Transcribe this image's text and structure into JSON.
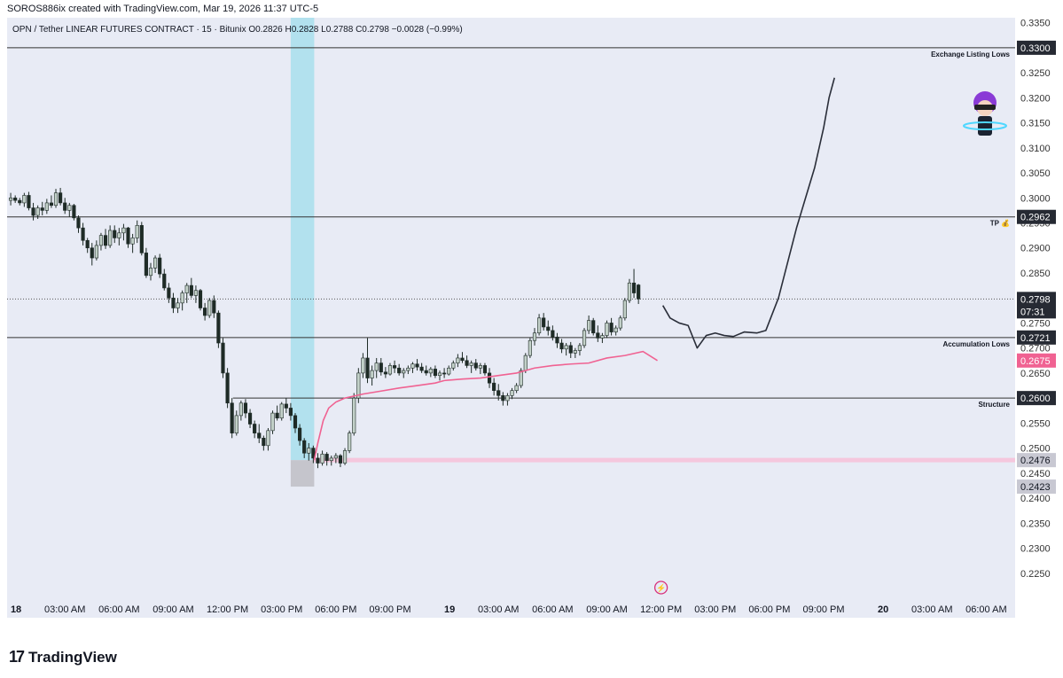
{
  "header": {
    "attribution": "SOROS886ix created with TradingView.com, Mar 19, 2026 11:37 UTC-5",
    "symbol_line": "OPN / Tether LINEAR FUTURES CONTRACT · 15 · Bitunix",
    "ohlc": {
      "o_label": "O",
      "o": "0.2826",
      "h_label": "H",
      "h": "0.2828",
      "l_label": "L",
      "l": "0.2788",
      "c_label": "C",
      "c": "0.2798",
      "change": "−0.0028 (−0.99%)"
    }
  },
  "footer": {
    "brand": "TradingView",
    "logo_mark": "17"
  },
  "colors": {
    "background": "#e8ebf5",
    "candle_up": "#c3d1c9",
    "candle_down": "#1e2b26",
    "ema": "#f06292",
    "zone": "#b2e1ee",
    "zone_low": "#c5c5cc",
    "level_line": "#333333",
    "projection": "#2a2e39",
    "support_band": "#f5c7dd",
    "dotted_price_line": "#555555"
  },
  "chart_data": {
    "type": "candlestick",
    "symbol": "OPN / Tether LINEAR FUTURES CONTRACT",
    "timeframe": "15",
    "exchange": "Bitunix",
    "ylim": [
      0.22,
      0.336
    ],
    "y_ticks": [
      "0.3350",
      "0.3300",
      "0.3250",
      "0.3200",
      "0.3150",
      "0.3100",
      "0.3050",
      "0.3000",
      "0.2950",
      "0.2900",
      "0.2850",
      "0.2800",
      "0.2750",
      "0.2700",
      "0.2650",
      "0.2600",
      "0.2550",
      "0.2500",
      "0.2450",
      "0.2400",
      "0.2350",
      "0.2300",
      "0.2250"
    ],
    "x_ticks": [
      {
        "label": "18",
        "hour": 0,
        "bold": true
      },
      {
        "label": "03:00 AM",
        "hour": 3
      },
      {
        "label": "06:00 AM",
        "hour": 6
      },
      {
        "label": "09:00 AM",
        "hour": 9
      },
      {
        "label": "12:00 PM",
        "hour": 12
      },
      {
        "label": "03:00 PM",
        "hour": 15
      },
      {
        "label": "06:00 PM",
        "hour": 18
      },
      {
        "label": "09:00 PM",
        "hour": 21
      },
      {
        "label": "19",
        "hour": 24,
        "bold": true
      },
      {
        "label": "03:00 AM",
        "hour": 27
      },
      {
        "label": "06:00 AM",
        "hour": 30
      },
      {
        "label": "09:00 AM",
        "hour": 33
      },
      {
        "label": "12:00 PM",
        "hour": 36
      },
      {
        "label": "03:00 PM",
        "hour": 39
      },
      {
        "label": "06:00 PM",
        "hour": 42
      },
      {
        "label": "09:00 PM",
        "hour": 45
      },
      {
        "label": "20",
        "hour": 48,
        "bold": true
      },
      {
        "label": "03:00 AM",
        "hour": 51
      },
      {
        "label": "06:00 AM",
        "hour": 54
      }
    ],
    "x_range_hours": [
      -0.2,
      55.6
    ],
    "horizontal_levels": [
      {
        "price": 0.33,
        "label": "Exchange Listing Lows",
        "price_label": "0.3300"
      },
      {
        "price": 0.2962,
        "label": "TP 💰",
        "price_label": "0.2962"
      },
      {
        "price": 0.2721,
        "label": "Accumulation Lows",
        "price_label": "0.2721"
      },
      {
        "price": 0.26,
        "label": "Structure",
        "price_label": "0.2600",
        "from_hour": 12.3
      }
    ],
    "current_price": {
      "price": 0.2798,
      "price_label": "0.2798",
      "countdown": "07:31"
    },
    "ema_value": {
      "price": 0.2675,
      "price_label": "0.2675"
    },
    "support_band": {
      "price": 0.2476,
      "price_label": "0.2476",
      "from_hour": 16.8
    },
    "low_marker": {
      "price": 0.2423,
      "price_label": "0.2423"
    },
    "highlight_zone": {
      "from_hour": 15.5,
      "to_hour": 16.8,
      "zone_low": 0.2423,
      "zone_mid": 0.2476,
      "zone_high": 0.336
    },
    "ohlc": [
      [
        0.2995,
        0.301,
        0.2985,
        0.3
      ],
      [
        0.3,
        0.3005,
        0.299,
        0.2995
      ],
      [
        0.2995,
        0.3,
        0.2985,
        0.299
      ],
      [
        0.299,
        0.301,
        0.2982,
        0.3005
      ],
      [
        0.3005,
        0.3012,
        0.2975,
        0.298
      ],
      [
        0.298,
        0.299,
        0.2955,
        0.2965
      ],
      [
        0.2965,
        0.2985,
        0.2958,
        0.298
      ],
      [
        0.298,
        0.2992,
        0.2965,
        0.2975
      ],
      [
        0.2975,
        0.2998,
        0.2968,
        0.299
      ],
      [
        0.299,
        0.3005,
        0.298,
        0.2985
      ],
      [
        0.2985,
        0.3018,
        0.298,
        0.301
      ],
      [
        0.301,
        0.302,
        0.2985,
        0.299
      ],
      [
        0.299,
        0.3,
        0.2968,
        0.2975
      ],
      [
        0.2975,
        0.299,
        0.2962,
        0.2985
      ],
      [
        0.2985,
        0.2988,
        0.2955,
        0.296
      ],
      [
        0.296,
        0.2965,
        0.293,
        0.294
      ],
      [
        0.294,
        0.295,
        0.2905,
        0.2915
      ],
      [
        0.2915,
        0.292,
        0.289,
        0.29
      ],
      [
        0.29,
        0.291,
        0.2865,
        0.288
      ],
      [
        0.288,
        0.2915,
        0.2875,
        0.2905
      ],
      [
        0.2905,
        0.293,
        0.2895,
        0.2925
      ],
      [
        0.2925,
        0.2938,
        0.2898,
        0.2905
      ],
      [
        0.2905,
        0.2945,
        0.29,
        0.2935
      ],
      [
        0.2935,
        0.2945,
        0.291,
        0.292
      ],
      [
        0.292,
        0.294,
        0.2905,
        0.293
      ],
      [
        0.293,
        0.2948,
        0.2915,
        0.294
      ],
      [
        0.294,
        0.2942,
        0.29,
        0.2908
      ],
      [
        0.2908,
        0.2928,
        0.289,
        0.292
      ],
      [
        0.292,
        0.2955,
        0.291,
        0.2945
      ],
      [
        0.2945,
        0.2952,
        0.2885,
        0.289
      ],
      [
        0.289,
        0.29,
        0.284,
        0.2845
      ],
      [
        0.2845,
        0.287,
        0.2835,
        0.286
      ],
      [
        0.286,
        0.2885,
        0.285,
        0.288
      ],
      [
        0.288,
        0.2888,
        0.284,
        0.2848
      ],
      [
        0.2848,
        0.2858,
        0.2815,
        0.282
      ],
      [
        0.282,
        0.283,
        0.279,
        0.28
      ],
      [
        0.28,
        0.281,
        0.277,
        0.278
      ],
      [
        0.278,
        0.28,
        0.277,
        0.279
      ],
      [
        0.279,
        0.2815,
        0.2775,
        0.281
      ],
      [
        0.281,
        0.283,
        0.279,
        0.2825
      ],
      [
        0.2825,
        0.284,
        0.28,
        0.2805
      ],
      [
        0.2805,
        0.2825,
        0.279,
        0.2815
      ],
      [
        0.2815,
        0.2818,
        0.2775,
        0.278
      ],
      [
        0.278,
        0.279,
        0.2755,
        0.2765
      ],
      [
        0.2765,
        0.28,
        0.276,
        0.2795
      ],
      [
        0.2795,
        0.2805,
        0.276,
        0.277
      ],
      [
        0.277,
        0.2775,
        0.27,
        0.271
      ],
      [
        0.271,
        0.272,
        0.264,
        0.265
      ],
      [
        0.265,
        0.266,
        0.258,
        0.259
      ],
      [
        0.259,
        0.26,
        0.252,
        0.253
      ],
      [
        0.253,
        0.2575,
        0.2525,
        0.2565
      ],
      [
        0.2565,
        0.2595,
        0.2555,
        0.259
      ],
      [
        0.259,
        0.2598,
        0.256,
        0.257
      ],
      [
        0.257,
        0.2578,
        0.254,
        0.2548
      ],
      [
        0.2548,
        0.2555,
        0.252,
        0.253
      ],
      [
        0.253,
        0.2548,
        0.251,
        0.252
      ],
      [
        0.252,
        0.2525,
        0.2495,
        0.2505
      ],
      [
        0.2505,
        0.254,
        0.2495,
        0.2535
      ],
      [
        0.2535,
        0.2575,
        0.2528,
        0.257
      ],
      [
        0.257,
        0.2585,
        0.2555,
        0.256
      ],
      [
        0.256,
        0.2592,
        0.2555,
        0.2588
      ],
      [
        0.2588,
        0.26,
        0.257,
        0.258
      ],
      [
        0.258,
        0.259,
        0.2555,
        0.2565
      ],
      [
        0.2565,
        0.257,
        0.253,
        0.254
      ],
      [
        0.254,
        0.2548,
        0.2505,
        0.2515
      ],
      [
        0.2515,
        0.252,
        0.248,
        0.249
      ],
      [
        0.249,
        0.251,
        0.2475,
        0.25
      ],
      [
        0.25,
        0.2505,
        0.247,
        0.248
      ],
      [
        0.248,
        0.249,
        0.246,
        0.247
      ],
      [
        0.247,
        0.2495,
        0.2465,
        0.2488
      ],
      [
        0.2488,
        0.2492,
        0.2465,
        0.2475
      ],
      [
        0.2475,
        0.2485,
        0.2465,
        0.248
      ],
      [
        0.248,
        0.249,
        0.247,
        0.2485
      ],
      [
        0.2485,
        0.2488,
        0.2462,
        0.247
      ],
      [
        0.247,
        0.25,
        0.2466,
        0.2495
      ],
      [
        0.2495,
        0.2535,
        0.249,
        0.253
      ],
      [
        0.253,
        0.261,
        0.2525,
        0.26
      ],
      [
        0.26,
        0.266,
        0.259,
        0.265
      ],
      [
        0.265,
        0.269,
        0.264,
        0.268
      ],
      [
        0.268,
        0.272,
        0.263,
        0.264
      ],
      [
        0.264,
        0.2665,
        0.2625,
        0.2655
      ],
      [
        0.2655,
        0.268,
        0.264,
        0.267
      ],
      [
        0.267,
        0.268,
        0.2645,
        0.2652
      ],
      [
        0.2652,
        0.2662,
        0.264,
        0.2648
      ],
      [
        0.2648,
        0.267,
        0.2645,
        0.2665
      ],
      [
        0.2665,
        0.2675,
        0.265,
        0.266
      ],
      [
        0.266,
        0.2668,
        0.2645,
        0.265
      ],
      [
        0.265,
        0.266,
        0.264,
        0.2655
      ],
      [
        0.2655,
        0.2665,
        0.2648,
        0.266
      ],
      [
        0.266,
        0.2672,
        0.265,
        0.2668
      ],
      [
        0.2668,
        0.2678,
        0.2655,
        0.2662
      ],
      [
        0.2662,
        0.267,
        0.265,
        0.2655
      ],
      [
        0.2655,
        0.2665,
        0.2645,
        0.265
      ],
      [
        0.265,
        0.2662,
        0.2642,
        0.2658
      ],
      [
        0.2658,
        0.2665,
        0.264,
        0.2645
      ],
      [
        0.2645,
        0.2655,
        0.2635,
        0.265
      ],
      [
        0.265,
        0.266,
        0.264,
        0.2648
      ],
      [
        0.2648,
        0.2665,
        0.2645,
        0.266
      ],
      [
        0.266,
        0.2675,
        0.2655,
        0.267
      ],
      [
        0.267,
        0.2688,
        0.2662,
        0.268
      ],
      [
        0.268,
        0.2692,
        0.267,
        0.2675
      ],
      [
        0.2675,
        0.2685,
        0.266,
        0.2665
      ],
      [
        0.2665,
        0.2675,
        0.265,
        0.267
      ],
      [
        0.267,
        0.2678,
        0.2655,
        0.266
      ],
      [
        0.266,
        0.267,
        0.2648,
        0.2665
      ],
      [
        0.2665,
        0.267,
        0.2645,
        0.265
      ],
      [
        0.265,
        0.266,
        0.262,
        0.263
      ],
      [
        0.263,
        0.264,
        0.2605,
        0.2615
      ],
      [
        0.2615,
        0.2628,
        0.2595,
        0.2605
      ],
      [
        0.2605,
        0.2612,
        0.2585,
        0.2595
      ],
      [
        0.2595,
        0.261,
        0.2585,
        0.2605
      ],
      [
        0.2605,
        0.262,
        0.2598,
        0.2615
      ],
      [
        0.2615,
        0.263,
        0.261,
        0.2625
      ],
      [
        0.2625,
        0.266,
        0.262,
        0.2655
      ],
      [
        0.2655,
        0.269,
        0.265,
        0.2685
      ],
      [
        0.2685,
        0.272,
        0.268,
        0.2715
      ],
      [
        0.2715,
        0.274,
        0.2705,
        0.273
      ],
      [
        0.273,
        0.2768,
        0.2725,
        0.276
      ],
      [
        0.276,
        0.277,
        0.2735,
        0.2742
      ],
      [
        0.2742,
        0.2755,
        0.2725,
        0.2735
      ],
      [
        0.2735,
        0.2745,
        0.2715,
        0.2722
      ],
      [
        0.2722,
        0.273,
        0.27,
        0.271
      ],
      [
        0.271,
        0.2718,
        0.269,
        0.2698
      ],
      [
        0.2698,
        0.271,
        0.2685,
        0.2705
      ],
      [
        0.2705,
        0.2712,
        0.268,
        0.269
      ],
      [
        0.269,
        0.27,
        0.268,
        0.2695
      ],
      [
        0.2695,
        0.271,
        0.2685,
        0.2705
      ],
      [
        0.2705,
        0.274,
        0.27,
        0.2735
      ],
      [
        0.2735,
        0.2765,
        0.2728,
        0.2755
      ],
      [
        0.2755,
        0.276,
        0.2725,
        0.273
      ],
      [
        0.273,
        0.2745,
        0.2712,
        0.272
      ],
      [
        0.272,
        0.273,
        0.271,
        0.2725
      ],
      [
        0.2725,
        0.2755,
        0.272,
        0.275
      ],
      [
        0.275,
        0.276,
        0.2725,
        0.2732
      ],
      [
        0.2732,
        0.2745,
        0.2725,
        0.274
      ],
      [
        0.274,
        0.2765,
        0.2735,
        0.276
      ],
      [
        0.276,
        0.28,
        0.2755,
        0.2795
      ],
      [
        0.2795,
        0.2838,
        0.279,
        0.283
      ],
      [
        0.283,
        0.2858,
        0.28,
        0.281
      ],
      [
        0.2826,
        0.2828,
        0.2788,
        0.2798
      ]
    ],
    "ema_points": [
      [
        16.8,
        0.2476
      ],
      [
        17.0,
        0.251
      ],
      [
        17.3,
        0.2555
      ],
      [
        17.6,
        0.258
      ],
      [
        18.0,
        0.2592
      ],
      [
        18.5,
        0.26
      ],
      [
        19.5,
        0.2608
      ],
      [
        20.5,
        0.2614
      ],
      [
        21.5,
        0.262
      ],
      [
        22.5,
        0.2625
      ],
      [
        23.5,
        0.263
      ],
      [
        24.0,
        0.2635
      ],
      [
        25.0,
        0.2638
      ],
      [
        26.0,
        0.264
      ],
      [
        27.0,
        0.2645
      ],
      [
        28.0,
        0.265
      ],
      [
        29.0,
        0.266
      ],
      [
        30.0,
        0.2665
      ],
      [
        31.0,
        0.2668
      ],
      [
        32.0,
        0.267
      ],
      [
        33.0,
        0.268
      ],
      [
        34.0,
        0.2685
      ],
      [
        35.0,
        0.2693
      ],
      [
        35.8,
        0.2675
      ]
    ],
    "projection_points": [
      [
        36.1,
        0.2785
      ],
      [
        36.5,
        0.276
      ],
      [
        37.0,
        0.275
      ],
      [
        37.5,
        0.2745
      ],
      [
        38.0,
        0.27
      ],
      [
        38.5,
        0.2725
      ],
      [
        39.0,
        0.273
      ],
      [
        39.5,
        0.2725
      ],
      [
        40.0,
        0.2723
      ],
      [
        40.6,
        0.2732
      ],
      [
        41.3,
        0.273
      ],
      [
        41.8,
        0.2735
      ],
      [
        42.5,
        0.28
      ],
      [
        43.0,
        0.287
      ],
      [
        43.5,
        0.294
      ],
      [
        44.0,
        0.3
      ],
      [
        44.5,
        0.306
      ],
      [
        45.0,
        0.314
      ],
      [
        45.3,
        0.32
      ],
      [
        45.6,
        0.324
      ]
    ]
  }
}
